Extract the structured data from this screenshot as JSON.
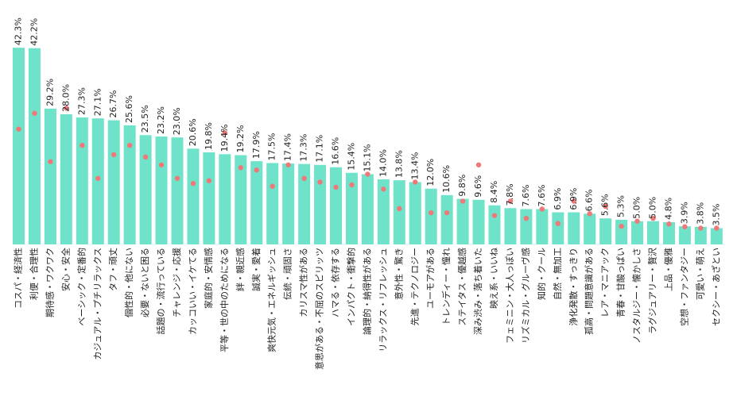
{
  "chart_data": {
    "type": "bar",
    "title": "",
    "xlabel": "",
    "ylabel": "",
    "ylim": [
      0,
      45
    ],
    "grid": false,
    "legend": "none",
    "colors": {
      "bar": "#6fe3c9",
      "dot": "#f07878"
    },
    "series": [
      {
        "values": [
          42.3,
          42.2,
          29.2,
          28.0,
          27.3,
          27.1,
          26.7,
          25.6,
          23.5,
          23.2,
          23.0,
          20.6,
          19.8,
          19.4,
          19.2,
          17.9,
          17.5,
          17.4,
          17.3,
          17.1,
          16.6,
          15.4,
          15.1,
          14.0,
          13.8,
          13.4,
          12.0,
          10.6,
          9.8,
          9.6,
          8.4,
          7.8,
          7.6,
          7.6,
          6.9,
          6.9,
          6.6,
          5.6,
          5.3,
          5.0,
          5.0,
          4.8,
          3.9,
          3.8,
          3.5
        ]
      },
      {
        "values": [
          24.8,
          28.2,
          17.8,
          29.3,
          21.3,
          14.2,
          19.3,
          21.3,
          18.8,
          17.1,
          14.2,
          13.1,
          13.7,
          24.0,
          16.5,
          16.0,
          12.5,
          17.1,
          14.2,
          13.4,
          12.3,
          12.8,
          15.1,
          11.9,
          7.7,
          13.4,
          6.8,
          6.8,
          9.3,
          17.1,
          6.2,
          9.3,
          5.6,
          7.6,
          4.5,
          9.3,
          6.6,
          8.2,
          3.9,
          5.0,
          5.6,
          4.4,
          3.8,
          3.5,
          3.5
        ]
      }
    ],
    "categories": [
      "コスパ・経済性",
      "利便・合理性",
      "期待感・ワクワク",
      "安心・安全",
      "ベーシック・定番的",
      "カジュアル・プチリラックス",
      "タフ・頑丈",
      "個性的・他にない",
      "必要・ないと困る",
      "話題の・流行っている",
      "チャレンジ・応援",
      "カッコいい・イケてる",
      "家庭的・安情感",
      "平等・世の中のためになる",
      "絆・親近感",
      "誠実・愛着",
      "爽快元気・エネルギッシュ",
      "伝統・頑固さ",
      "カリスマ性がある",
      "意思がある・不屈のスピリッツ",
      "ハマる・依存する",
      "インパクト・衝撃的",
      "論理的・納得性がある",
      "リラックス・リフレッシュ",
      "意外性・驚き",
      "先進・テクノロジー",
      "ユーモアがある",
      "トレンディー・憧れ",
      "ステイタス・優越感",
      "深み渋み・落ち着いた",
      "映え系・いいね",
      "フェミニン・大人っぽい",
      "リズミカル・グルーヴ感",
      "知的・クール",
      "自然・無加工",
      "浄化発散・すっきり",
      "孤高・問題意識がある",
      "レア・マニアック",
      "青春・甘酸っぱい",
      "ノスタルジー・懐かしさ",
      "ラグジュアリー・贅沢",
      "上品・優雅",
      "空想・ファンタジー",
      "可愛い・萌え",
      "セクシー・あざとい"
    ],
    "value_labels": [
      "42.3%",
      "42.2%",
      "29.2%",
      "28.0%",
      "27.3%",
      "27.1%",
      "26.7%",
      "25.6%",
      "23.5%",
      "23.2%",
      "23.0%",
      "20.6%",
      "19.8%",
      "19.4%",
      "19.2%",
      "17.9%",
      "17.5%",
      "17.4%",
      "17.3%",
      "17.1%",
      "16.6%",
      "15.4%",
      "15.1%",
      "14.0%",
      "13.8%",
      "13.4%",
      "12.0%",
      "10.6%",
      "9.8%",
      "9.6%",
      "8.4%",
      "7.8%",
      "7.6%",
      "7.6%",
      "6.9%",
      "6.9%",
      "6.6%",
      "5.6%",
      "5.3%",
      "5.0%",
      "5.0%",
      "4.8%",
      "3.9%",
      "3.8%",
      "3.5%"
    ]
  }
}
